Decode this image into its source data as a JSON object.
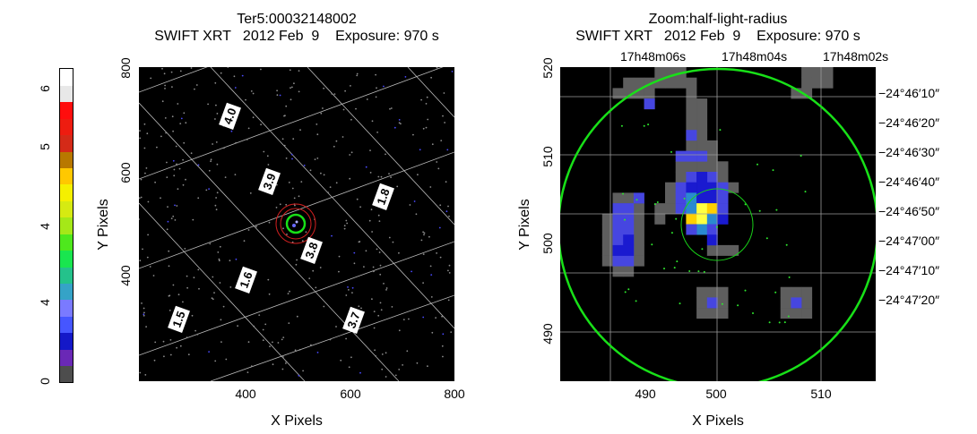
{
  "colorbar": {
    "tick_labels": [
      "0",
      "4",
      "4",
      "5",
      "6"
    ],
    "colors": [
      "#4d4d4d",
      "#6a28b6",
      "#1418c8",
      "#4656ff",
      "#7a7aff",
      "#35a3c7",
      "#24c28b",
      "#19e64f",
      "#4ee81d",
      "#a5e818",
      "#d6ea12",
      "#f5f000",
      "#ffc800",
      "#b87800",
      "#d42a18",
      "#ee1c10",
      "#ff0d0d",
      "#e8e8e8",
      "#ffffff"
    ]
  },
  "chart_data": [
    {
      "type": "scatter",
      "title": "Ter5:00032148002",
      "subtitle": "SWIFT XRT   2012 Feb  9    Exposure: 970 s",
      "xlabel": "X Pixels",
      "ylabel": "Y Pixels",
      "xlim": [
        200,
        800
      ],
      "ylim": [
        200,
        800
      ],
      "xticks": [
        400,
        600,
        800
      ],
      "yticks": [
        400,
        600,
        800
      ],
      "grid_labels": [
        "4.0",
        "3.9",
        "3.8",
        "3.7",
        "1.8",
        "1.6",
        "1.5"
      ],
      "source_circle_x": 500,
      "source_circle_y": 500,
      "background": "#000000"
    },
    {
      "type": "heatmap",
      "title": "Zoom:half-light-radius",
      "subtitle": "SWIFT XRT   2012 Feb  9    Exposure: 970 s",
      "xlabel": "X Pixels",
      "ylabel": "Y Pixels",
      "xlim": [
        480,
        516
      ],
      "ylim": [
        484,
        521
      ],
      "xticks": [
        490,
        500,
        510
      ],
      "yticks": [
        490,
        500,
        510,
        520
      ],
      "ra_labels": [
        "17h48m06s",
        "17h48m04s",
        "17h48m02s"
      ],
      "dec_labels": [
        "−24°46′10″",
        "−24°46′20″",
        "−24°46′30″",
        "−24°46′40″",
        "−24°46′50″",
        "−24°47′00″",
        "−24°47′10″",
        "−24°47′20″"
      ],
      "background": "#000000"
    }
  ]
}
